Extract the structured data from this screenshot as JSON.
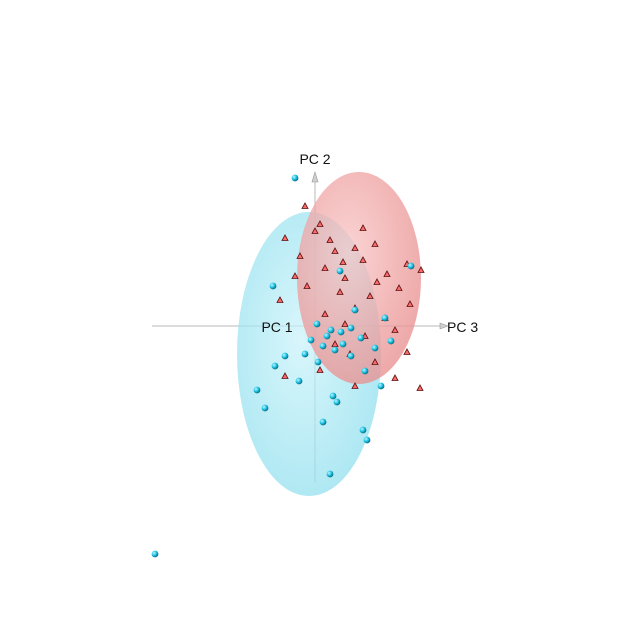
{
  "chart_data": {
    "type": "scatter",
    "projection": "3d-orthographic",
    "axes": {
      "x": "PC 1",
      "y": "PC 2",
      "z": "PC 3"
    },
    "grid": false,
    "legend": "none",
    "series": [
      {
        "color": "#ff6b6b",
        "ellipsoid_color": "#f4a6a6",
        "marker": "cone",
        "ellipse": {
          "center": [
            0.0,
            0.48,
            0.44
          ],
          "radii": [
            0.62,
            1.06
          ]
        },
        "points": [
          [
            0.0,
            1.2,
            -0.1
          ],
          [
            0.0,
            1.02,
            0.05
          ],
          [
            0.0,
            0.98,
            0.48
          ],
          [
            0.0,
            0.95,
            0.0
          ],
          [
            0.0,
            0.88,
            -0.3
          ],
          [
            0.0,
            0.86,
            0.15
          ],
          [
            0.0,
            0.82,
            0.6
          ],
          [
            0.0,
            0.78,
            0.4
          ],
          [
            0.0,
            0.75,
            0.2
          ],
          [
            0.0,
            0.7,
            -0.15
          ],
          [
            0.0,
            0.66,
            0.48
          ],
          [
            0.0,
            0.62,
            0.92
          ],
          [
            0.0,
            0.58,
            0.1
          ],
          [
            0.0,
            0.56,
            1.06
          ],
          [
            0.0,
            0.52,
            0.72
          ],
          [
            0.0,
            0.5,
            -0.2
          ],
          [
            0.0,
            0.48,
            0.3
          ],
          [
            0.0,
            0.44,
            0.62
          ],
          [
            0.0,
            0.4,
            -0.08
          ],
          [
            0.0,
            0.38,
            0.84
          ],
          [
            0.0,
            0.34,
            0.25
          ],
          [
            0.0,
            0.3,
            0.55
          ],
          [
            0.0,
            0.26,
            -0.35
          ],
          [
            0.0,
            0.22,
            0.95
          ],
          [
            0.0,
            0.18,
            0.4
          ],
          [
            0.0,
            0.12,
            0.1
          ],
          [
            0.0,
            0.08,
            0.7
          ],
          [
            0.0,
            0.02,
            0.3
          ],
          [
            0.0,
            -0.04,
            0.8
          ],
          [
            0.0,
            -0.1,
            0.5
          ],
          [
            0.0,
            -0.18,
            0.2
          ],
          [
            0.0,
            -0.26,
            0.92
          ],
          [
            0.0,
            -0.36,
            0.6
          ],
          [
            0.0,
            -0.44,
            0.05
          ],
          [
            0.0,
            -0.52,
            0.8
          ],
          [
            0.0,
            -0.6,
            0.4
          ],
          [
            0.0,
            -0.62,
            1.05
          ],
          [
            0.0,
            -0.5,
            -0.3
          ],
          [
            0.0,
            -0.28,
            0.35
          ],
          [
            0.0,
            0.64,
            0.28
          ]
        ]
      },
      {
        "color": "#22c8e6",
        "ellipsoid_color": "#a6e8f4",
        "marker": "sphere",
        "ellipse": {
          "center": [
            0.0,
            -0.28,
            -0.06
          ],
          "radii": [
            0.72,
            1.42
          ]
        },
        "points": [
          [
            0.0,
            1.48,
            -0.2
          ],
          [
            0.0,
            0.4,
            -0.42
          ],
          [
            0.0,
            0.16,
            0.4
          ],
          [
            0.0,
            0.08,
            0.7
          ],
          [
            0.0,
            0.02,
            0.02
          ],
          [
            0.0,
            -0.02,
            0.36
          ],
          [
            0.0,
            -0.04,
            0.16
          ],
          [
            0.0,
            -0.06,
            0.26
          ],
          [
            0.0,
            -0.1,
            0.12
          ],
          [
            0.0,
            -0.12,
            0.46
          ],
          [
            0.0,
            -0.14,
            -0.04
          ],
          [
            0.0,
            -0.18,
            0.28
          ],
          [
            0.0,
            -0.2,
            0.08
          ],
          [
            0.0,
            -0.22,
            0.6
          ],
          [
            0.0,
            -0.24,
            0.2
          ],
          [
            0.0,
            -0.28,
            -0.1
          ],
          [
            0.0,
            -0.3,
            0.36
          ],
          [
            0.0,
            -0.36,
            0.03
          ],
          [
            0.0,
            -0.4,
            -0.4
          ],
          [
            0.0,
            -0.45,
            0.5
          ],
          [
            0.0,
            -0.55,
            -0.16
          ],
          [
            0.0,
            -0.64,
            -0.58
          ],
          [
            0.0,
            -0.7,
            0.18
          ],
          [
            0.0,
            -0.76,
            0.22
          ],
          [
            0.0,
            -0.82,
            -0.5
          ],
          [
            0.0,
            -0.96,
            0.08
          ],
          [
            0.0,
            -1.04,
            0.48
          ],
          [
            0.0,
            -1.14,
            0.52
          ],
          [
            0.0,
            -1.48,
            0.15
          ],
          [
            0.0,
            -2.28,
            -1.6
          ],
          [
            0.0,
            0.6,
            0.96
          ],
          [
            0.0,
            -0.15,
            0.76
          ],
          [
            0.0,
            -0.6,
            0.66
          ],
          [
            0.0,
            0.55,
            0.25
          ],
          [
            0.0,
            -0.3,
            -0.3
          ]
        ]
      }
    ]
  }
}
